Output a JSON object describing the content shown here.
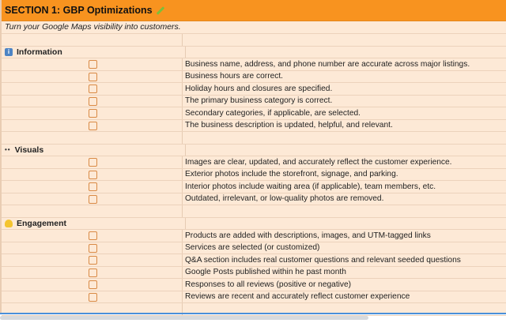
{
  "header": {
    "title": "SECTION 1: GBP Optimizations",
    "subtitle": "Turn your Google Maps visibility into customers."
  },
  "colors": {
    "header": "#f8931f",
    "row": "#fde9d6",
    "checkbox": "#d98a45"
  },
  "sections": [
    {
      "title": "Information",
      "icon": "info-icon",
      "items": [
        "Business name, address, and phone number are accurate across major listings.",
        "Business hours are correct.",
        "Holiday hours and closures are specified.",
        "The primary business category is correct.",
        "Secondary categories, if applicable, are selected.",
        "The business description is updated, helpful, and relevant."
      ]
    },
    {
      "title": "Visuals",
      "icon": "eyes-icon",
      "items": [
        "Images are clear, updated, and accurately reflect the customer experience.",
        "Exterior photos include the storefront, signage, and parking.",
        "Interior photos include waiting area (if applicable), team members, etc.",
        "Outdated, irrelevant, or low-quality photos are removed."
      ]
    },
    {
      "title": "Engagement",
      "icon": "waving-hand-icon",
      "items": [
        "Products are added with descriptions, images, and UTM-tagged links",
        "Services are selected (or customized)",
        "Q&A section includes real customer questions and relevant seeded questions",
        "Google Posts published within he past month",
        "Responses to all reviews (positive or negative)",
        "Reviews are recent and accurately reflect customer experience"
      ]
    }
  ]
}
